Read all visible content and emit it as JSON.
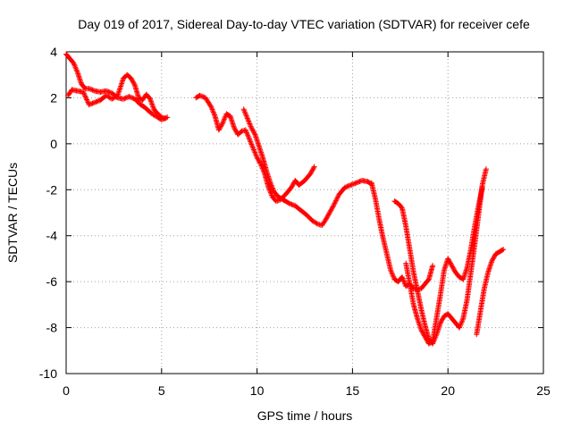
{
  "chart_data": {
    "type": "scatter",
    "title": "Day 019 of 2017, Sidereal Day-to-day VTEC variation (SDTVAR) for receiver cefe",
    "xlabel": "GPS time / hours",
    "ylabel": "SDTVAR / TECUs",
    "xlim": [
      0,
      25
    ],
    "ylim": [
      -10,
      4
    ],
    "xticks": [
      0,
      5,
      10,
      15,
      20,
      25
    ],
    "yticks": [
      4,
      2,
      0,
      -2,
      -4,
      -6,
      -8,
      -10
    ],
    "grid": true,
    "marker": "plus",
    "color": "#ff0000",
    "series": [
      {
        "name": "seg1",
        "x": [
          0.0,
          0.2,
          0.4,
          0.6,
          0.8,
          1.0,
          1.2,
          1.5,
          1.8,
          2.1,
          2.4,
          2.7,
          3.0,
          3.3,
          3.6,
          3.9,
          4.1,
          4.3,
          4.5,
          4.8,
          5.0,
          5.3
        ],
        "y": [
          3.9,
          3.7,
          3.5,
          3.1,
          2.6,
          2.4,
          2.4,
          2.3,
          2.25,
          2.3,
          2.2,
          2.0,
          1.95,
          2.05,
          1.95,
          1.7,
          1.6,
          1.45,
          1.3,
          1.15,
          1.05,
          1.15
        ]
      },
      {
        "name": "seg2",
        "x": [
          0.1,
          0.3,
          0.6,
          0.9,
          1.2,
          1.5,
          1.8,
          2.1,
          2.4,
          2.7,
          3.0,
          3.2,
          3.4,
          3.6,
          3.8,
          4.0,
          4.2,
          4.4,
          4.6,
          4.8,
          5.0,
          5.2
        ],
        "y": [
          2.1,
          2.35,
          2.3,
          2.25,
          1.7,
          1.8,
          1.9,
          2.1,
          1.95,
          2.1,
          2.85,
          3.0,
          2.85,
          2.55,
          2.0,
          1.9,
          2.15,
          1.95,
          1.5,
          1.3,
          1.15,
          1.1
        ]
      },
      {
        "name": "seg3",
        "x": [
          6.8,
          7.0,
          7.3,
          7.6,
          7.8,
          8.0,
          8.2,
          8.4,
          8.6,
          8.8,
          9.0,
          9.2,
          9.4,
          9.6,
          9.8,
          10.0,
          10.2,
          10.4,
          10.6,
          10.8,
          11.0,
          11.2,
          11.5,
          11.8,
          12.0,
          12.2,
          12.5,
          12.8,
          13.0
        ],
        "y": [
          2.0,
          2.1,
          2.0,
          1.6,
          1.2,
          0.6,
          0.9,
          1.3,
          1.2,
          0.7,
          0.4,
          0.55,
          0.6,
          0.2,
          -0.2,
          -0.6,
          -0.9,
          -1.3,
          -1.9,
          -2.3,
          -2.5,
          -2.45,
          -2.2,
          -1.9,
          -1.6,
          -1.8,
          -1.6,
          -1.3,
          -1.0
        ]
      },
      {
        "name": "seg4",
        "x": [
          9.3,
          9.5,
          9.7,
          9.9,
          10.1,
          10.3,
          10.5,
          10.7,
          10.9,
          11.1,
          11.3,
          11.5,
          11.7,
          12.0,
          12.3,
          12.6,
          12.9,
          13.2,
          13.4,
          13.6,
          13.8,
          14.0,
          14.3,
          14.6,
          14.9,
          15.2,
          15.5,
          15.8,
          16.0
        ],
        "y": [
          1.5,
          1.1,
          0.7,
          0.4,
          -0.1,
          -0.6,
          -1.2,
          -1.7,
          -2.1,
          -2.3,
          -2.4,
          -2.5,
          -2.6,
          -2.7,
          -2.9,
          -3.1,
          -3.35,
          -3.5,
          -3.55,
          -3.3,
          -3.0,
          -2.7,
          -2.2,
          -1.9,
          -1.8,
          -1.7,
          -1.6,
          -1.65,
          -1.75
        ]
      },
      {
        "name": "seg5",
        "x": [
          16.0,
          16.2,
          16.4,
          16.6,
          16.8,
          17.0,
          17.2,
          17.4,
          17.6,
          17.8,
          18.0,
          18.2,
          18.4,
          18.6,
          18.8,
          19.0,
          19.2
        ],
        "y": [
          -1.7,
          -2.4,
          -3.3,
          -4.1,
          -4.8,
          -5.5,
          -5.9,
          -6.0,
          -5.8,
          -6.2,
          -6.1,
          -6.3,
          -6.35,
          -6.3,
          -6.1,
          -5.9,
          -5.3
        ]
      },
      {
        "name": "seg6",
        "x": [
          17.2,
          17.4,
          17.6,
          17.8,
          18.0,
          18.2,
          18.4,
          18.6,
          18.8,
          19.0,
          19.2,
          19.4,
          19.6,
          19.8,
          20.0,
          20.2,
          20.4,
          20.6,
          20.8,
          21.0,
          21.2,
          21.4,
          21.6,
          21.8,
          22.0
        ],
        "y": [
          -2.5,
          -2.6,
          -2.8,
          -3.6,
          -4.6,
          -5.6,
          -6.4,
          -7.2,
          -7.9,
          -8.5,
          -8.7,
          -8.3,
          -7.8,
          -7.5,
          -7.4,
          -7.6,
          -7.8,
          -8.0,
          -7.6,
          -6.8,
          -5.6,
          -4.4,
          -3.1,
          -1.8,
          -1.1
        ]
      },
      {
        "name": "seg7",
        "x": [
          17.8,
          18.0,
          18.2,
          18.4,
          18.6,
          18.8,
          19.0,
          19.2,
          19.4,
          19.6,
          19.8,
          20.0,
          20.2,
          20.4,
          20.6,
          20.8,
          21.0,
          21.2,
          21.4,
          21.6,
          21.8
        ],
        "y": [
          -5.2,
          -6.1,
          -7.0,
          -7.6,
          -8.1,
          -8.4,
          -8.7,
          -8.6,
          -7.6,
          -6.6,
          -5.5,
          -5.0,
          -5.3,
          -5.6,
          -5.8,
          -5.9,
          -5.4,
          -4.6,
          -3.6,
          -2.7,
          -1.9
        ]
      },
      {
        "name": "seg8",
        "x": [
          21.5,
          21.7,
          21.9,
          22.1,
          22.3,
          22.5,
          22.7,
          22.9
        ],
        "y": [
          -8.3,
          -7.3,
          -6.3,
          -5.6,
          -5.1,
          -4.8,
          -4.7,
          -4.6
        ]
      }
    ]
  }
}
